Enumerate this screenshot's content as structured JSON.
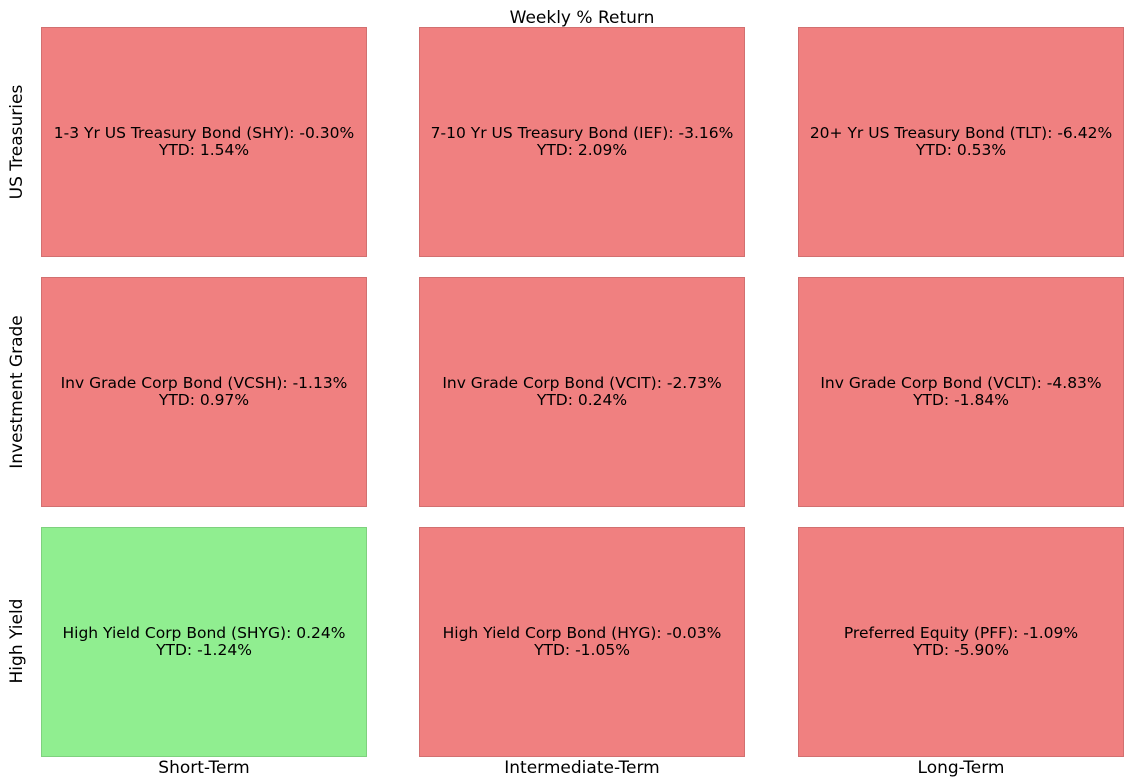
{
  "chart_data": {
    "type": "heatmap",
    "title": "Weekly % Return",
    "rows": [
      "US Treasuries",
      "Investment Grade",
      "High Yield"
    ],
    "columns": [
      "Short-Term",
      "Intermediate-Term",
      "Long-Term"
    ],
    "colors": {
      "positive": "#90ee90",
      "negative": "#f08080"
    },
    "cells": [
      [
        {
          "name": "1-3 Yr US Treasury Bond (SHY)",
          "weekly": -0.3,
          "weekly_text": "-0.30%",
          "ytd_text": "1.54%"
        },
        {
          "name": "7-10 Yr US Treasury Bond (IEF)",
          "weekly": -3.16,
          "weekly_text": "-3.16%",
          "ytd_text": "2.09%"
        },
        {
          "name": "20+ Yr US Treasury Bond (TLT)",
          "weekly": -6.42,
          "weekly_text": "-6.42%",
          "ytd_text": "0.53%"
        }
      ],
      [
        {
          "name": "Inv Grade Corp Bond (VCSH)",
          "weekly": -1.13,
          "weekly_text": "-1.13%",
          "ytd_text": "0.97%"
        },
        {
          "name": "Inv Grade Corp Bond (VCIT)",
          "weekly": -2.73,
          "weekly_text": "-2.73%",
          "ytd_text": "0.24%"
        },
        {
          "name": "Inv Grade Corp Bond (VCLT)",
          "weekly": -4.83,
          "weekly_text": "-4.83%",
          "ytd_text": "-1.84%"
        }
      ],
      [
        {
          "name": "High Yield Corp Bond (SHYG)",
          "weekly": 0.24,
          "weekly_text": "0.24%",
          "ytd_text": "-1.24%"
        },
        {
          "name": "High Yield Corp Bond (HYG)",
          "weekly": -0.03,
          "weekly_text": "-0.03%",
          "ytd_text": "-1.05%"
        },
        {
          "name": "Preferred Equity (PFF)",
          "weekly": -1.09,
          "weekly_text": "-1.09%",
          "ytd_text": "-5.90%"
        }
      ]
    ],
    "ytd_prefix": "YTD: "
  }
}
